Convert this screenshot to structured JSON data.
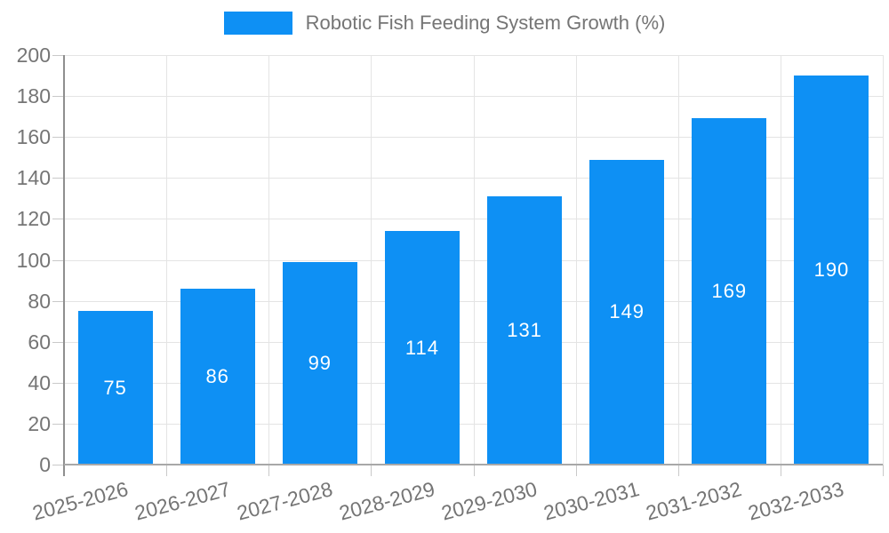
{
  "legend": {
    "label": "Robotic Fish Feeding System Growth (%)"
  },
  "colors": {
    "bar": "#0e90f4",
    "axis_y": "#8f8f8f",
    "axis_x": "#a8a8a8",
    "grid": "#e4e4e4",
    "tick": "#c9c9c9",
    "text": "#757575",
    "value_label": "#ffffff",
    "background": "#ffffff"
  },
  "chart_data": {
    "type": "bar",
    "title": "Robotic Fish Feeding System Growth (%)",
    "categories": [
      "2025-2026",
      "2026-2027",
      "2027-2028",
      "2028-2029",
      "2029-2030",
      "2030-2031",
      "2031-2032",
      "2032-2033"
    ],
    "values": [
      75,
      86,
      99,
      114,
      131,
      149,
      169,
      190
    ],
    "xlabel": "",
    "ylabel": "",
    "ylim": [
      0,
      200
    ],
    "ytick_step": 20,
    "grid": true,
    "legend_position": "top-center",
    "value_label_position": "inside-center",
    "x_label_rotation_deg": -15
  }
}
